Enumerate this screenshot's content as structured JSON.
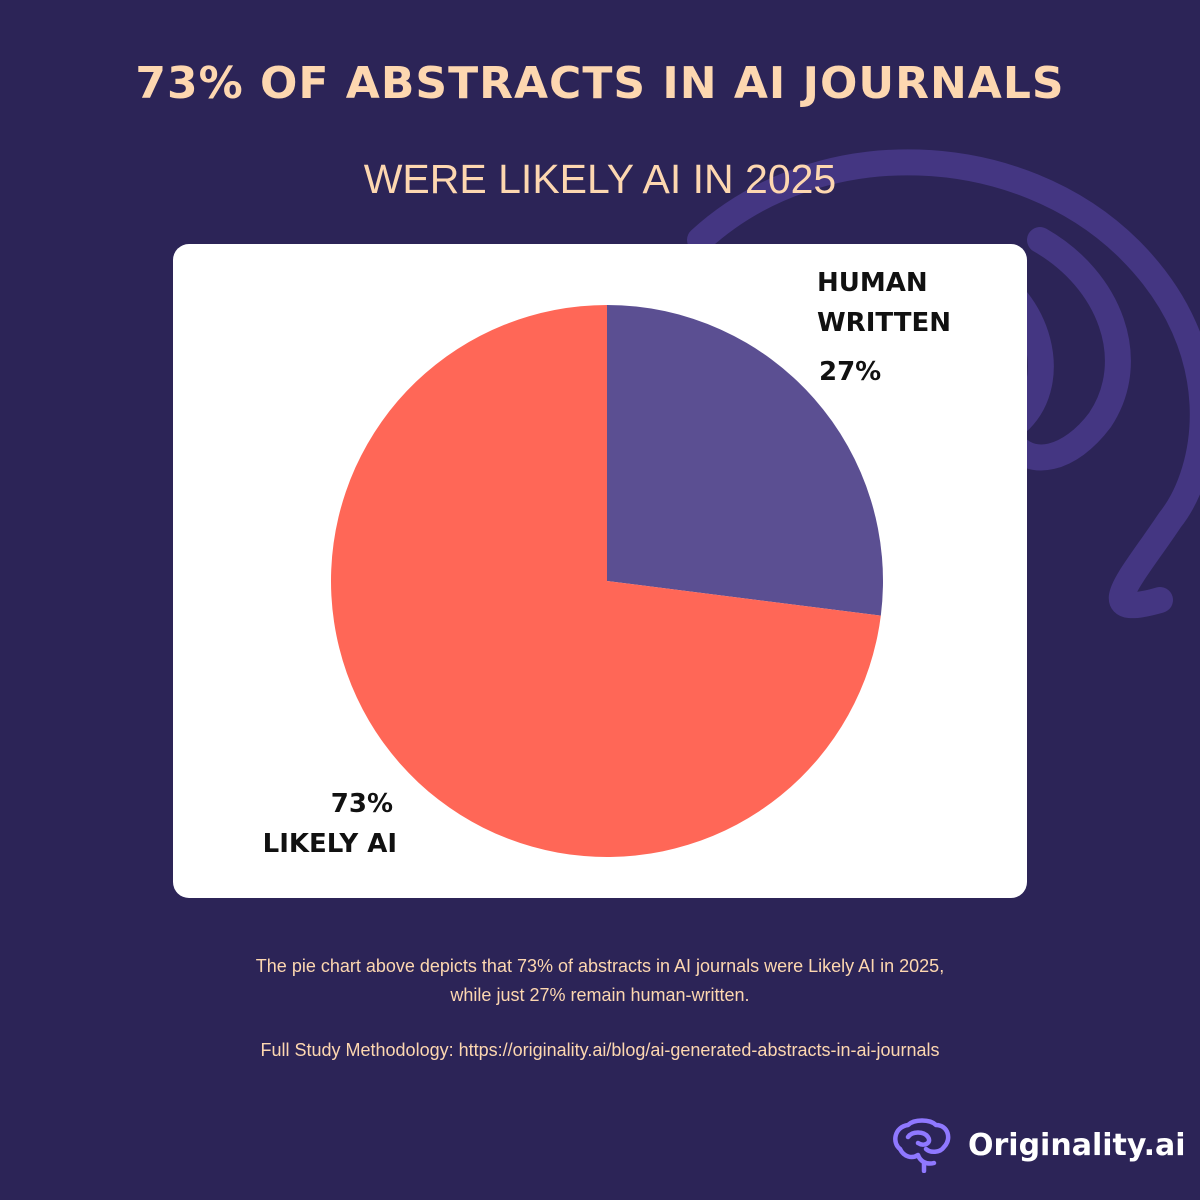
{
  "header": {
    "title": "73% OF ABSTRACTS IN AI JOURNALS",
    "subtitle": "WERE LIKELY AI IN 2025"
  },
  "chart_data": {
    "type": "pie",
    "slices": [
      {
        "label_lines": [
          "HUMAN",
          "WRITTEN"
        ],
        "value": 27,
        "value_label": "27%",
        "color": "#5b4f92"
      },
      {
        "label_lines": [
          "LIKELY AI"
        ],
        "value": 73,
        "value_label": "73%",
        "color": "#ff6757"
      }
    ],
    "start_angle_deg": 0,
    "direction": "clockwise"
  },
  "footer": {
    "caption_line1": "The pie chart above depicts that 73% of abstracts in AI journals were Likely AI in 2025,",
    "caption_line2": "while just 27% remain human-written.",
    "methodology": "Full Study Methodology: https://originality.ai/blog/ai-generated-abstracts-in-ai-journals"
  },
  "brand": {
    "name": "Originality.ai",
    "logo_icon": "brain-icon"
  },
  "colors": {
    "background": "#2c2457",
    "accent_text": "#fdd7b0",
    "card": "#ffffff",
    "decor": "#4a3a8c"
  }
}
